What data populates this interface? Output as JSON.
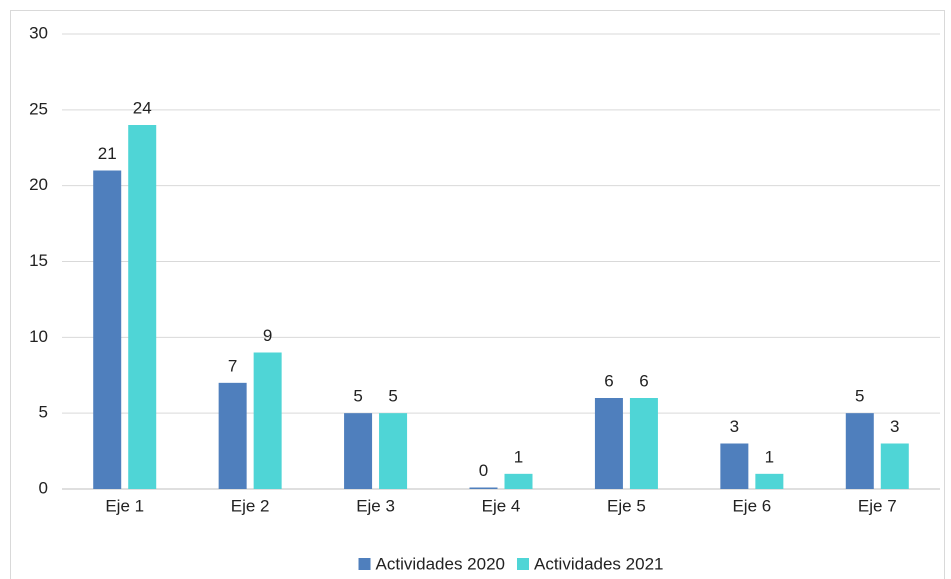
{
  "chart_data": {
    "type": "bar",
    "categories": [
      "Eje 1",
      "Eje 2",
      "Eje 3",
      "Eje 4",
      "Eje 5",
      "Eje 6",
      "Eje 7"
    ],
    "series": [
      {
        "name": "Actividades 2020",
        "color": "#4f7fbd",
        "values": [
          21,
          7,
          5,
          0,
          6,
          3,
          5
        ]
      },
      {
        "name": "Actividades 2021",
        "color": "#4fd5d6",
        "values": [
          24,
          9,
          5,
          1,
          6,
          1,
          3
        ]
      }
    ],
    "ylim": [
      0,
      30
    ],
    "yticks": [
      0,
      5,
      10,
      15,
      20,
      25,
      30
    ],
    "grid": true,
    "legend": "bottom"
  }
}
